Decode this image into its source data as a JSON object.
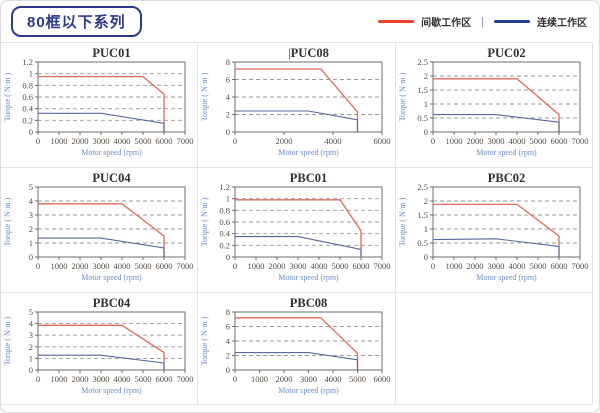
{
  "page": {
    "title_badge": "80框以下系列",
    "legend": {
      "items": [
        {
          "label": "间歇工作区",
          "color": "#e8432d"
        },
        {
          "label": "连续工作区",
          "color": "#24408f"
        }
      ],
      "separator": "|"
    }
  },
  "colors": {
    "title_text": "#33302e",
    "tick_text": "#564c44",
    "axis_label_text": "#6b8cc7",
    "plot_border": "#6e6e6e",
    "grid_dash": "#9a9a9a"
  },
  "chart_data": [
    {
      "type": "line",
      "title": "PUC01",
      "title_cursor": false,
      "xlabel": "Motor speed (rpm)",
      "ylabel": "Torque ( N·m )",
      "xlim": [
        0,
        7000
      ],
      "xticks": [
        0,
        1000,
        2000,
        3000,
        4000,
        5000,
        6000,
        7000
      ],
      "ylim": [
        0,
        1.2
      ],
      "yticks": [
        0,
        0.2,
        0.4,
        0.6,
        0.8,
        1,
        1.2
      ],
      "ytick_labels": [
        "0",
        "0.2",
        "0.4",
        "0.6",
        "0.8",
        "1",
        "1.2"
      ],
      "grid": "horizontal-dashed",
      "legend_position": "none",
      "series": [
        {
          "name": "间歇工作区",
          "color": "#e06a5e",
          "width": 1.3,
          "data_name": "intermittent-series-line",
          "points": [
            [
              0,
              0.95
            ],
            [
              5000,
              0.95
            ],
            [
              6000,
              0.65
            ],
            [
              6000,
              0
            ]
          ]
        },
        {
          "name": "连续工作区",
          "color": "#5a689a",
          "width": 1.1,
          "data_name": "continuous-series-line",
          "points": [
            [
              0,
              0.32
            ],
            [
              3000,
              0.32
            ],
            [
              6000,
              0.15
            ],
            [
              6000,
              0
            ]
          ]
        }
      ]
    },
    {
      "type": "line",
      "title": "PUC08",
      "title_cursor": true,
      "xlabel": "Motor speed (rpm)",
      "ylabel": "Torque ( N·m )",
      "xlim": [
        0,
        6000
      ],
      "xticks": [
        0,
        2000,
        4000,
        6000
      ],
      "ylim": [
        0,
        8
      ],
      "yticks": [
        0,
        2,
        4,
        6,
        8
      ],
      "ytick_labels": [
        "0",
        "2",
        "4",
        "6",
        "8"
      ],
      "grid": "horizontal-dashed",
      "legend_position": "none",
      "series": [
        {
          "name": "间歇工作区",
          "color": "#e06a5e",
          "width": 1.3,
          "data_name": "intermittent-series-line",
          "points": [
            [
              0,
              7.2
            ],
            [
              3500,
              7.2
            ],
            [
              5000,
              2.3
            ],
            [
              5000,
              0
            ]
          ]
        },
        {
          "name": "连续工作区",
          "color": "#5a689a",
          "width": 1.1,
          "data_name": "continuous-series-line",
          "points": [
            [
              0,
              2.4
            ],
            [
              3000,
              2.4
            ],
            [
              5000,
              1.4
            ],
            [
              5000,
              0
            ]
          ]
        }
      ]
    },
    {
      "type": "line",
      "title": "PUC02",
      "title_cursor": false,
      "xlabel": "Motor speed (rpm)",
      "ylabel": "Torque ( N·m )",
      "xlim": [
        0,
        7000
      ],
      "xticks": [
        0,
        1000,
        2000,
        3000,
        4000,
        5000,
        6000,
        7000
      ],
      "ylim": [
        0,
        2.5
      ],
      "yticks": [
        0,
        0.5,
        1,
        1.5,
        2,
        2.5
      ],
      "ytick_labels": [
        "0",
        "0.5",
        "1",
        "1.5",
        "2",
        "2.5"
      ],
      "grid": "horizontal-dashed",
      "legend_position": "none",
      "series": [
        {
          "name": "间歇工作区",
          "color": "#e06a5e",
          "width": 1.3,
          "data_name": "intermittent-series-line",
          "points": [
            [
              0,
              1.9
            ],
            [
              4000,
              1.9
            ],
            [
              6000,
              0.62
            ],
            [
              6000,
              0
            ]
          ]
        },
        {
          "name": "连续工作区",
          "color": "#5a689a",
          "width": 1.1,
          "data_name": "continuous-series-line",
          "points": [
            [
              0,
              0.62
            ],
            [
              3000,
              0.62
            ],
            [
              6000,
              0.35
            ],
            [
              6000,
              0
            ]
          ]
        }
      ]
    },
    {
      "type": "line",
      "title": "PUC04",
      "title_cursor": false,
      "xlabel": "Motor speed (rpm)",
      "ylabel": "Torque ( N·m )",
      "xlim": [
        0,
        7000
      ],
      "xticks": [
        0,
        1000,
        2000,
        3000,
        4000,
        5000,
        6000,
        7000
      ],
      "ylim": [
        0,
        5
      ],
      "yticks": [
        0,
        1,
        2,
        3,
        4,
        5
      ],
      "ytick_labels": [
        "0",
        "1",
        "2",
        "3",
        "4",
        "5"
      ],
      "grid": "horizontal-dashed",
      "legend_position": "none",
      "series": [
        {
          "name": "间歇工作区",
          "color": "#e06a5e",
          "width": 1.3,
          "data_name": "intermittent-series-line",
          "points": [
            [
              0,
              3.8
            ],
            [
              4000,
              3.8
            ],
            [
              6000,
              1.5
            ],
            [
              6000,
              0
            ]
          ]
        },
        {
          "name": "连续工作区",
          "color": "#5a689a",
          "width": 1.1,
          "data_name": "continuous-series-line",
          "points": [
            [
              0,
              1.35
            ],
            [
              3000,
              1.35
            ],
            [
              6000,
              0.65
            ],
            [
              6000,
              0
            ]
          ]
        }
      ]
    },
    {
      "type": "line",
      "title": "PBC01",
      "title_cursor": false,
      "xlabel": "Motor speed (rpm)",
      "ylabel": "Torque ( N·m )",
      "xlim": [
        0,
        7000
      ],
      "xticks": [
        0,
        1000,
        2000,
        3000,
        4000,
        5000,
        6000,
        7000
      ],
      "ylim": [
        0,
        1.2
      ],
      "yticks": [
        0,
        0.2,
        0.4,
        0.6,
        0.8,
        1,
        1.2
      ],
      "ytick_labels": [
        "0",
        "0.2",
        "0.4",
        "0.6",
        "0.8",
        "1",
        "1.2"
      ],
      "grid": "horizontal-dashed",
      "legend_position": "none",
      "series": [
        {
          "name": "间歇工作区",
          "color": "#e06a5e",
          "width": 1.3,
          "data_name": "intermittent-series-line",
          "points": [
            [
              0,
              0.98
            ],
            [
              5000,
              0.98
            ],
            [
              6000,
              0.45
            ],
            [
              6000,
              0
            ]
          ]
        },
        {
          "name": "连续工作区",
          "color": "#5a689a",
          "width": 1.1,
          "data_name": "continuous-series-line",
          "points": [
            [
              0,
              0.35
            ],
            [
              3000,
              0.35
            ],
            [
              6000,
              0.13
            ],
            [
              6000,
              0
            ]
          ]
        }
      ]
    },
    {
      "type": "line",
      "title": "PBC02",
      "title_cursor": false,
      "xlabel": "Motor speed (rpm)",
      "ylabel": "Torque ( N·m )",
      "xlim": [
        0,
        7000
      ],
      "xticks": [
        0,
        1000,
        2000,
        3000,
        4000,
        5000,
        6000,
        7000
      ],
      "ylim": [
        0,
        2.5
      ],
      "yticks": [
        0,
        0.5,
        1,
        1.5,
        2,
        2.5
      ],
      "ytick_labels": [
        "0",
        "0.5",
        "1",
        "1.5",
        "2",
        "2.5"
      ],
      "grid": "horizontal-dashed",
      "legend_position": "none",
      "series": [
        {
          "name": "间歇工作区",
          "color": "#e06a5e",
          "width": 1.3,
          "data_name": "intermittent-series-line",
          "points": [
            [
              0,
              1.88
            ],
            [
              4000,
              1.88
            ],
            [
              6000,
              0.75
            ],
            [
              6000,
              0
            ]
          ]
        },
        {
          "name": "连续工作区",
          "color": "#5a689a",
          "width": 1.1,
          "data_name": "continuous-series-line",
          "points": [
            [
              0,
              0.62
            ],
            [
              3000,
              0.65
            ],
            [
              6000,
              0.38
            ],
            [
              6000,
              0
            ]
          ]
        }
      ]
    },
    {
      "type": "line",
      "title": "PBC04",
      "title_cursor": false,
      "xlabel": "Motor speed (rpm)",
      "ylabel": "Torque ( N·m )",
      "xlim": [
        0,
        7000
      ],
      "xticks": [
        0,
        1000,
        2000,
        3000,
        4000,
        5000,
        6000,
        7000
      ],
      "ylim": [
        0,
        5
      ],
      "yticks": [
        0,
        1,
        2,
        3,
        4,
        5
      ],
      "ytick_labels": [
        "0",
        "1",
        "2",
        "3",
        "4",
        "5"
      ],
      "grid": "horizontal-dashed",
      "legend_position": "none",
      "series": [
        {
          "name": "间歇工作区",
          "color": "#e06a5e",
          "width": 1.3,
          "data_name": "intermittent-series-line",
          "points": [
            [
              0,
              3.85
            ],
            [
              4000,
              3.85
            ],
            [
              6000,
              1.5
            ],
            [
              6000,
              0
            ]
          ]
        },
        {
          "name": "连续工作区",
          "color": "#5a689a",
          "width": 1.1,
          "data_name": "continuous-series-line",
          "points": [
            [
              0,
              1.28
            ],
            [
              3000,
              1.28
            ],
            [
              6000,
              0.6
            ],
            [
              6000,
              0
            ]
          ]
        }
      ]
    },
    {
      "type": "line",
      "title": "PBC08",
      "title_cursor": false,
      "xlabel": "Motor speed (rpm)",
      "ylabel": "Torque ( N·m )",
      "xlim": [
        0,
        6000
      ],
      "xticks": [
        0,
        1000,
        2000,
        3000,
        4000,
        5000,
        6000
      ],
      "ylim": [
        0,
        8
      ],
      "yticks": [
        0,
        2,
        4,
        6,
        8
      ],
      "ytick_labels": [
        "0",
        "2",
        "4",
        "6",
        "8"
      ],
      "grid": "horizontal-dashed",
      "legend_position": "none",
      "series": [
        {
          "name": "间歇工作区",
          "color": "#e06a5e",
          "width": 1.3,
          "data_name": "intermittent-series-line",
          "points": [
            [
              0,
              7.2
            ],
            [
              3500,
              7.2
            ],
            [
              5000,
              2.3
            ],
            [
              5000,
              0
            ]
          ]
        },
        {
          "name": "连续工作区",
          "color": "#5a689a",
          "width": 1.1,
          "data_name": "continuous-series-line",
          "points": [
            [
              0,
              2.4
            ],
            [
              3000,
              2.4
            ],
            [
              5000,
              1.4
            ],
            [
              5000,
              0
            ]
          ]
        }
      ]
    }
  ]
}
